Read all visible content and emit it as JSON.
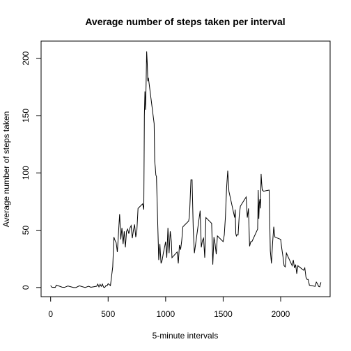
{
  "chart_data": {
    "type": "line",
    "title": "Average number of steps taken per interval",
    "xlabel": "5-minute intervals",
    "ylabel": "Average number of steps taken",
    "xlim": [
      -83,
      2430
    ],
    "ylim": [
      -8,
      215
    ],
    "x_ticks": [
      0,
      500,
      1000,
      1500,
      2000
    ],
    "x_tick_labels": [
      "0",
      "500",
      "1000",
      "1500",
      "2000"
    ],
    "y_ticks": [
      0,
      50,
      100,
      150,
      200
    ],
    "y_tick_labels": [
      "0",
      "50",
      "100",
      "150",
      "200"
    ],
    "line_color": "#000000",
    "grid": false,
    "series": [
      {
        "x": [
          0,
          10,
          20,
          30,
          40,
          50,
          100,
          110,
          120,
          150,
          200,
          220,
          250,
          300,
          330,
          350,
          400,
          410,
          420,
          430,
          440,
          450,
          460,
          470,
          480,
          490,
          500,
          520,
          540,
          550,
          560,
          570,
          580,
          600,
          610,
          620,
          630,
          640,
          650,
          660,
          670,
          680,
          690,
          700,
          710,
          720,
          730,
          740,
          750,
          760,
          800,
          810,
          815,
          820,
          825,
          830,
          835,
          840,
          845,
          850,
          900,
          905,
          910,
          915,
          920,
          940,
          950,
          960,
          970,
          980,
          990,
          1000,
          1010,
          1020,
          1030,
          1040,
          1050,
          1055,
          1100,
          1110,
          1120,
          1130,
          1140,
          1150,
          1200,
          1205,
          1210,
          1220,
          1230,
          1240,
          1250,
          1300,
          1310,
          1320,
          1330,
          1340,
          1350,
          1400,
          1410,
          1420,
          1430,
          1440,
          1450,
          1500,
          1510,
          1520,
          1530,
          1540,
          1550,
          1600,
          1605,
          1610,
          1615,
          1620,
          1630,
          1640,
          1650,
          1700,
          1710,
          1720,
          1730,
          1740,
          1750,
          1800,
          1805,
          1810,
          1815,
          1820,
          1825,
          1830,
          1835,
          1840,
          1845,
          1850,
          1900,
          1910,
          1920,
          1930,
          1940,
          1950,
          2000,
          2010,
          2020,
          2030,
          2040,
          2050,
          2100,
          2110,
          2120,
          2130,
          2140,
          2150,
          2200,
          2210,
          2220,
          2230,
          2240,
          2250,
          2300,
          2310,
          2320,
          2330,
          2340,
          2350
        ],
        "values": [
          1.7,
          0.3,
          0.1,
          0.2,
          0.1,
          2.1,
          0.3,
          0.2,
          0.1,
          1.3,
          0.0,
          0.0,
          1.5,
          0.0,
          1.1,
          0.2,
          1.1,
          3.0,
          0.5,
          2.8,
          1.0,
          3.0,
          0.4,
          0.0,
          1.6,
          1.4,
          3.3,
          1.7,
          18.0,
          44.0,
          41.0,
          39.0,
          31.0,
          64.0,
          42.0,
          52.0,
          38.0,
          49.0,
          35.0,
          49.0,
          51.0,
          47.0,
          52.0,
          54.0,
          43.0,
          50.0,
          55.0,
          44.0,
          50.0,
          69.0,
          73.0,
          68.0,
          150.0,
          171.0,
          155.0,
          177.0,
          206.0,
          196.0,
          180.0,
          183.0,
          143.0,
          110.0,
          105.0,
          98.0,
          97.0,
          24.0,
          38.0,
          21.0,
          24.0,
          30.0,
          35.0,
          40.0,
          26.0,
          52.0,
          30.0,
          49.0,
          40.0,
          26.0,
          31.0,
          21.0,
          37.0,
          33.0,
          41.0,
          53.0,
          58.0,
          61.0,
          69.0,
          94.0,
          94.0,
          51.0,
          30.0,
          67.0,
          35.0,
          41.0,
          43.0,
          26.0,
          61.0,
          56.0,
          20.0,
          44.0,
          38.0,
          29.0,
          45.0,
          40.0,
          46.0,
          62.0,
          87.0,
          102.0,
          84.0,
          61.0,
          68.0,
          47.0,
          45.0,
          46.0,
          46.0,
          63.0,
          71.0,
          79.0,
          61.0,
          69.0,
          36.0,
          40.0,
          40.0,
          51.0,
          85.0,
          60.0,
          74.0,
          77.0,
          69.0,
          99.0,
          91.0,
          85.0,
          85.0,
          84.0,
          85.0,
          32.0,
          21.0,
          39.0,
          53.0,
          44.0,
          42.0,
          34.0,
          27.0,
          19.0,
          18.0,
          30.0,
          19.0,
          24.0,
          17.0,
          20.0,
          12.0,
          19.0,
          15.0,
          17.0,
          9.0,
          7.0,
          7.0,
          2.0,
          1.0,
          4.7,
          3.3,
          1.0,
          0.6,
          4.5
        ]
      }
    ]
  }
}
